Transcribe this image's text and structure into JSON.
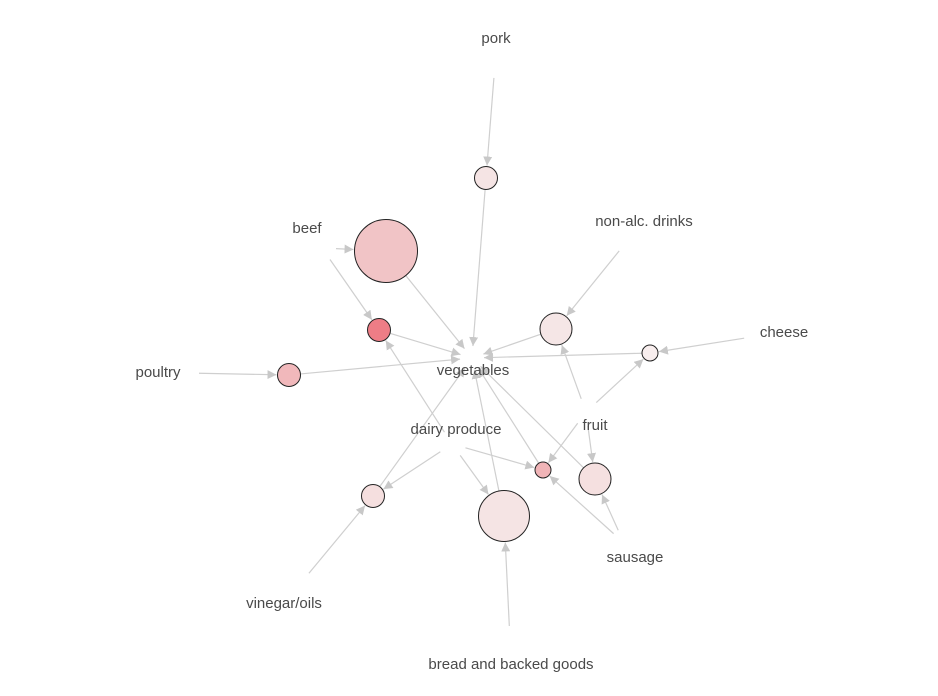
{
  "graph": {
    "items": [
      {
        "key": "pork",
        "label": "pork"
      },
      {
        "key": "beef",
        "label": "beef"
      },
      {
        "key": "non_alc_drinks",
        "label": "non-alc. drinks"
      },
      {
        "key": "cheese",
        "label": "cheese"
      },
      {
        "key": "poultry",
        "label": "poultry"
      },
      {
        "key": "vegetables",
        "label": "vegetables"
      },
      {
        "key": "dairy_produce",
        "label": "dairy produce"
      },
      {
        "key": "fruit",
        "label": "fruit"
      },
      {
        "key": "sausage",
        "label": "sausage"
      },
      {
        "key": "vinegar_oils",
        "label": "vinegar/oils"
      },
      {
        "key": "bread",
        "label": "bread and backed goods"
      }
    ],
    "rules": [
      {
        "key": "r1",
        "size": "small",
        "fill": "#f5e4e4",
        "lhs": [
          "pork"
        ],
        "rhs": "vegetables"
      },
      {
        "key": "r2",
        "size": "xlarge",
        "fill": "#f1c4c6",
        "lhs": [
          "beef"
        ],
        "rhs": "vegetables"
      },
      {
        "key": "r3",
        "size": "small",
        "fill": "#ee7d86",
        "lhs": [
          "beef",
          "dairy_produce"
        ],
        "rhs": "vegetables"
      },
      {
        "key": "r4",
        "size": "medium",
        "fill": "#f5e6e6",
        "lhs": [
          "non_alc_drinks",
          "fruit"
        ],
        "rhs": "vegetables"
      },
      {
        "key": "r5",
        "size": "tiny",
        "fill": "#f8eeee",
        "lhs": [
          "cheese",
          "fruit"
        ],
        "rhs": "vegetables"
      },
      {
        "key": "r6",
        "size": "small",
        "fill": "#f1b8bb",
        "lhs": [
          "poultry"
        ],
        "rhs": "vegetables"
      },
      {
        "key": "r7",
        "size": "small",
        "fill": "#f5dfdf",
        "lhs": [
          "vinegar_oils",
          "dairy_produce"
        ],
        "rhs": "vegetables"
      },
      {
        "key": "r8",
        "size": "large",
        "fill": "#f5e4e4",
        "lhs": [
          "bread",
          "dairy_produce"
        ],
        "rhs": "vegetables"
      },
      {
        "key": "r9",
        "size": "tiny",
        "fill": "#f0b4b7",
        "lhs": [
          "sausage",
          "fruit",
          "dairy_produce"
        ],
        "rhs": "vegetables"
      },
      {
        "key": "r10",
        "size": "medium",
        "fill": "#f5e0e0",
        "lhs": [
          "sausage",
          "fruit"
        ],
        "rhs": "vegetables"
      }
    ]
  }
}
